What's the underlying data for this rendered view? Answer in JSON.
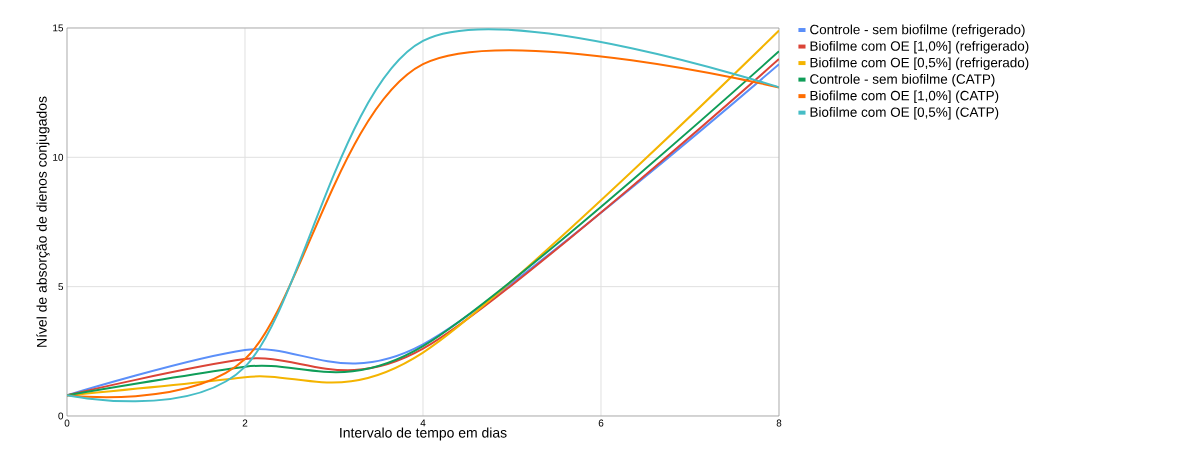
{
  "chart_data": {
    "type": "line",
    "xlabel": "Intervalo de tempo em dias",
    "ylabel": "Nível de absorção de dienos conjugados",
    "x": [
      0,
      2,
      4,
      8
    ],
    "xlim": [
      0,
      8
    ],
    "ylim": [
      0,
      15
    ],
    "xticks": [
      0,
      2,
      4,
      6,
      8
    ],
    "yticks": [
      0,
      5,
      10,
      15
    ],
    "grid": true,
    "legend": "top right",
    "marker": "none",
    "line_style": "solid",
    "series": [
      {
        "name": "Controle - sem biofilme (refrigerado)",
        "color": "#5b8ff9",
        "values": [
          0.8,
          2.55,
          2.77,
          13.6
        ]
      },
      {
        "name": "Biofilme com OE [1,0%] (refrigerado)",
        "color": "#db4437",
        "values": [
          0.8,
          2.2,
          2.6,
          13.8
        ]
      },
      {
        "name": "Biofilme com OE [0,5%] (refrigerado)",
        "color": "#f4b400",
        "values": [
          0.8,
          1.5,
          2.45,
          14.9
        ]
      },
      {
        "name": "Controle - sem biofilme (CATP)",
        "color": "#0f9d58",
        "values": [
          0.8,
          1.9,
          2.7,
          14.1
        ]
      },
      {
        "name": "Biofilme com OE [1,0%] (CATP)",
        "color": "#ff6d01",
        "values": [
          0.8,
          2.2,
          13.6,
          12.7
        ]
      },
      {
        "name": "Biofilme com OE [0,5%] (CATP)",
        "color": "#46bdc6",
        "values": [
          0.8,
          1.9,
          14.5,
          12.7
        ]
      }
    ]
  }
}
